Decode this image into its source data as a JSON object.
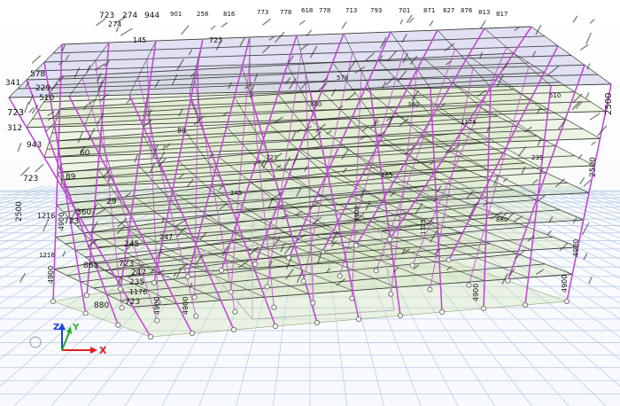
{
  "viewport": {
    "background": "#ffffff",
    "grid_color": "#b9cfe6",
    "floor_fill": "#cfe3b4",
    "roof_fill": "#c9c9ea",
    "column_color": "#c24ad6",
    "beam_color": "#222222"
  },
  "axis_triad": {
    "x_label": "X",
    "y_label": "Y",
    "z_label": "Z",
    "x_color": "#e02020",
    "y_color": "#20b020",
    "z_color": "#2040e0"
  },
  "top_labels": [
    "723",
    "274",
    "944",
    "901",
    "258",
    "816",
    "773",
    "778",
    "618",
    "778",
    "713",
    "793",
    "701",
    "871",
    "827",
    "876",
    "813",
    "817"
  ],
  "left_labels": [
    "341",
    "578",
    "510",
    "229",
    "723",
    "312",
    "943",
    "723",
    "89",
    "360",
    "1216",
    "723",
    "245",
    "865",
    "723",
    "880",
    "723",
    "1176",
    "247",
    "235"
  ],
  "column_tags": [
    "4900",
    "4900",
    "4900",
    "4900",
    "4900",
    "2500",
    "2500",
    "1725",
    "4900",
    "4900",
    "4900",
    "2500"
  ],
  "member_labels": [
    "723",
    "274",
    "860",
    "145",
    "1216",
    "723",
    "247",
    "245",
    "865",
    "1176",
    "880",
    "235",
    "29",
    "60",
    "89",
    "360",
    "578",
    "510"
  ]
}
